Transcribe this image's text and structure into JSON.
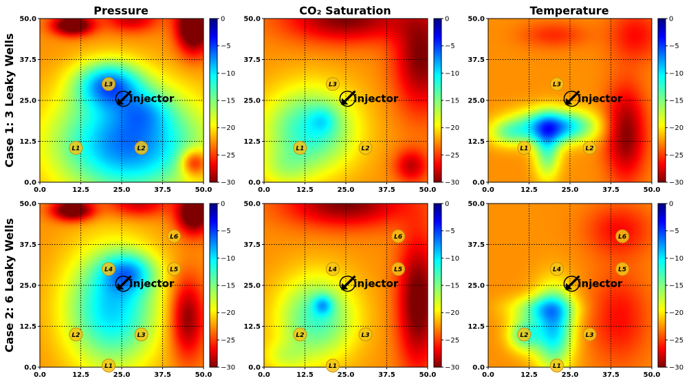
{
  "figure": {
    "column_titles": [
      "Pressure",
      "CO₂ Saturation",
      "Temperature"
    ],
    "row_titles": [
      "Case 1: 3 Leaky Wells",
      "Case 2: 6 Leaky Wells"
    ],
    "injector_label": "injector"
  },
  "colors": {
    "colormap": "jet_reversed",
    "grid_line": "#000000",
    "well_marker_fill": "#f5c518",
    "well_marker_edge": "#c8900a"
  },
  "chart_data": [
    {
      "type": "heatmap",
      "row": 0,
      "col": 0,
      "field": "pressure",
      "xlim": [
        0,
        50
      ],
      "ylim": [
        0,
        50
      ],
      "xticks": [
        "0.0",
        "12.5",
        "25.0",
        "37.5",
        "50.0"
      ],
      "yticks": [
        "0.0",
        "12.5",
        "25.0",
        "37.5",
        "50.0"
      ],
      "colorbar": {
        "range": [
          -30,
          0
        ],
        "ticks": [
          "0",
          "−5",
          "−10",
          "−15",
          "−20",
          "−25",
          "−30"
        ]
      },
      "grid": true,
      "injector": {
        "x": 25.5,
        "y": 25.5
      },
      "wells": [
        {
          "label": "L1",
          "x": 11,
          "y": 10.5
        },
        {
          "label": "L2",
          "x": 31,
          "y": 10.5
        },
        {
          "label": "L3",
          "x": 21,
          "y": 30
        }
      ],
      "blobs": [
        {
          "x": 27,
          "y": 12,
          "sx": 22,
          "sy": 16,
          "v": -15
        },
        {
          "x": 21,
          "y": 30,
          "sx": 10,
          "sy": 7,
          "v": -12
        },
        {
          "x": 32,
          "y": 22,
          "sx": 8,
          "sy": 6,
          "v": -4
        },
        {
          "x": 10,
          "y": 48,
          "sx": 6,
          "sy": 3,
          "v": 12
        },
        {
          "x": 28,
          "y": 50,
          "sx": 8,
          "sy": 4,
          "v": 6
        },
        {
          "x": 47,
          "y": 48,
          "sx": 5,
          "sy": 8,
          "v": 14
        },
        {
          "x": 47,
          "y": 6,
          "sx": 4,
          "sy": 4,
          "v": 8
        }
      ]
    },
    {
      "type": "heatmap",
      "row": 0,
      "col": 1,
      "field": "co2_saturation",
      "xlim": [
        0,
        50
      ],
      "ylim": [
        0,
        50
      ],
      "xticks": [
        "0.0",
        "12.5",
        "25.0",
        "37.5",
        "50.0"
      ],
      "yticks": [
        "0.0",
        "12.5",
        "25.0",
        "37.5",
        "50.0"
      ],
      "colorbar": {
        "range": [
          -30,
          0
        ],
        "ticks": [
          "0",
          "−5",
          "−10",
          "−15",
          "−20",
          "−25",
          "−30"
        ]
      },
      "grid": true,
      "injector": {
        "x": 25.5,
        "y": 25.5
      },
      "wells": [
        {
          "label": "L1",
          "x": 11,
          "y": 10.5
        },
        {
          "label": "L2",
          "x": 31,
          "y": 10.5
        },
        {
          "label": "L3",
          "x": 21,
          "y": 30
        }
      ],
      "blobs": [
        {
          "x": 14,
          "y": 16,
          "sx": 14,
          "sy": 13,
          "v": -10
        },
        {
          "x": 6,
          "y": 4,
          "sx": 8,
          "sy": 6,
          "v": -3
        },
        {
          "x": 18,
          "y": 19,
          "sx": 4,
          "sy": 4,
          "v": -3
        },
        {
          "x": 25,
          "y": 50,
          "sx": 18,
          "sy": 7,
          "v": 8
        },
        {
          "x": 48,
          "y": 38,
          "sx": 8,
          "sy": 16,
          "v": 8
        },
        {
          "x": 45,
          "y": 5,
          "sx": 5,
          "sy": 5,
          "v": 6
        }
      ]
    },
    {
      "type": "heatmap",
      "row": 0,
      "col": 2,
      "field": "temperature",
      "xlim": [
        0,
        50
      ],
      "ylim": [
        0,
        50
      ],
      "xticks": [
        "0.0",
        "12.5",
        "25.0",
        "37.5",
        "50.0"
      ],
      "yticks": [
        "0.0",
        "12.5",
        "25.0",
        "37.5",
        "50.0"
      ],
      "colorbar": {
        "range": [
          -30,
          0
        ],
        "ticks": [
          "0",
          "−5",
          "−10",
          "−15",
          "−20",
          "−25",
          "−30"
        ]
      },
      "grid": true,
      "injector": {
        "x": 25.5,
        "y": 25.5
      },
      "wells": [
        {
          "label": "L1",
          "x": 11,
          "y": 10.5
        },
        {
          "label": "L2",
          "x": 31,
          "y": 10.5
        },
        {
          "label": "L3",
          "x": 21,
          "y": 30
        }
      ],
      "blobs": [
        {
          "x": 20,
          "y": 17,
          "sx": 12,
          "sy": 5,
          "v": -14
        },
        {
          "x": 18,
          "y": 10,
          "sx": 4,
          "sy": 9,
          "v": -8
        },
        {
          "x": 6,
          "y": 15,
          "sx": 6,
          "sy": 4,
          "v": -5
        },
        {
          "x": 42,
          "y": 15,
          "sx": 6,
          "sy": 14,
          "v": 8
        },
        {
          "x": 45,
          "y": 45,
          "sx": 8,
          "sy": 8,
          "v": 4
        },
        {
          "x": 20,
          "y": 45,
          "sx": 10,
          "sy": 4,
          "v": 3
        }
      ]
    },
    {
      "type": "heatmap",
      "row": 1,
      "col": 0,
      "field": "pressure",
      "xlim": [
        0,
        50
      ],
      "ylim": [
        0,
        50
      ],
      "xticks": [
        "0.0",
        "12.5",
        "25.0",
        "37.5",
        "50.0"
      ],
      "yticks": [
        "0.0",
        "12.5",
        "25.0",
        "37.5",
        "50.0"
      ],
      "colorbar": {
        "range": [
          -30,
          0
        ],
        "ticks": [
          "0",
          "−5",
          "−10",
          "−15",
          "−20",
          "−25",
          "−30"
        ]
      },
      "grid": true,
      "injector": {
        "x": 25.5,
        "y": 25.5
      },
      "wells": [
        {
          "label": "L1",
          "x": 21,
          "y": 0.5
        },
        {
          "label": "L2",
          "x": 11,
          "y": 10
        },
        {
          "label": "L3",
          "x": 31,
          "y": 10
        },
        {
          "label": "L4",
          "x": 21,
          "y": 30
        },
        {
          "label": "L5",
          "x": 41,
          "y": 30
        },
        {
          "label": "L6",
          "x": 41,
          "y": 40
        }
      ],
      "blobs": [
        {
          "x": 22,
          "y": 18,
          "sx": 14,
          "sy": 18,
          "v": -12
        },
        {
          "x": 27,
          "y": 29,
          "sx": 8,
          "sy": 6,
          "v": -8
        },
        {
          "x": 45,
          "y": 15,
          "sx": 5,
          "sy": 12,
          "v": 8
        },
        {
          "x": 10,
          "y": 48,
          "sx": 6,
          "sy": 3,
          "v": 12
        },
        {
          "x": 30,
          "y": 50,
          "sx": 9,
          "sy": 4,
          "v": 6
        },
        {
          "x": 47,
          "y": 47,
          "sx": 5,
          "sy": 6,
          "v": 12
        }
      ]
    },
    {
      "type": "heatmap",
      "row": 1,
      "col": 1,
      "field": "co2_saturation",
      "xlim": [
        0,
        50
      ],
      "ylim": [
        0,
        50
      ],
      "xticks": [
        "0.0",
        "12.5",
        "25.0",
        "37.5",
        "50.0"
      ],
      "yticks": [
        "0.0",
        "12.5",
        "25.0",
        "37.5",
        "50.0"
      ],
      "colorbar": {
        "range": [
          -30,
          0
        ],
        "ticks": [
          "0",
          "−5",
          "−10",
          "−15",
          "−20",
          "−25",
          "−30"
        ]
      },
      "grid": true,
      "injector": {
        "x": 25.5,
        "y": 25.5
      },
      "wells": [
        {
          "label": "L1",
          "x": 21,
          "y": 0.5
        },
        {
          "label": "L2",
          "x": 11,
          "y": 10
        },
        {
          "label": "L3",
          "x": 31,
          "y": 10
        },
        {
          "label": "L4",
          "x": 21,
          "y": 30
        },
        {
          "label": "L5",
          "x": 41,
          "y": 30
        },
        {
          "label": "L6",
          "x": 41,
          "y": 40
        }
      ],
      "blobs": [
        {
          "x": 16,
          "y": 15,
          "sx": 12,
          "sy": 13,
          "v": -9
        },
        {
          "x": 18,
          "y": 19,
          "sx": 3,
          "sy": 3,
          "v": -6
        },
        {
          "x": 6,
          "y": 3,
          "sx": 7,
          "sy": 5,
          "v": -3
        },
        {
          "x": 25,
          "y": 50,
          "sx": 18,
          "sy": 7,
          "v": 8
        },
        {
          "x": 47,
          "y": 20,
          "sx": 6,
          "sy": 20,
          "v": 9
        }
      ]
    },
    {
      "type": "heatmap",
      "row": 1,
      "col": 2,
      "field": "temperature",
      "xlim": [
        0,
        50
      ],
      "ylim": [
        0,
        50
      ],
      "xticks": [
        "0.0",
        "12.5",
        "25.0",
        "37.5",
        "50.0"
      ],
      "yticks": [
        "0.0",
        "12.5",
        "25.0",
        "37.5",
        "50.0"
      ],
      "colorbar": {
        "range": [
          -30,
          0
        ],
        "ticks": [
          "0",
          "−5",
          "−10",
          "−15",
          "−20",
          "−25",
          "−30"
        ]
      },
      "grid": true,
      "injector": {
        "x": 25.5,
        "y": 25.5
      },
      "wells": [
        {
          "label": "L1",
          "x": 21,
          "y": 0.5
        },
        {
          "label": "L2",
          "x": 11,
          "y": 10
        },
        {
          "label": "L3",
          "x": 31,
          "y": 10
        },
        {
          "label": "L4",
          "x": 21,
          "y": 30
        },
        {
          "label": "L5",
          "x": 41,
          "y": 30
        },
        {
          "label": "L6",
          "x": 41,
          "y": 40
        }
      ],
      "blobs": [
        {
          "x": 20,
          "y": 12,
          "sx": 6,
          "sy": 12,
          "v": -12
        },
        {
          "x": 11,
          "y": 10,
          "sx": 5,
          "sy": 5,
          "v": -8
        },
        {
          "x": 16,
          "y": 18,
          "sx": 10,
          "sy": 4,
          "v": -6
        },
        {
          "x": 40,
          "y": 15,
          "sx": 9,
          "sy": 14,
          "v": 4
        },
        {
          "x": 40,
          "y": 42,
          "sx": 10,
          "sy": 8,
          "v": 4
        }
      ]
    }
  ]
}
